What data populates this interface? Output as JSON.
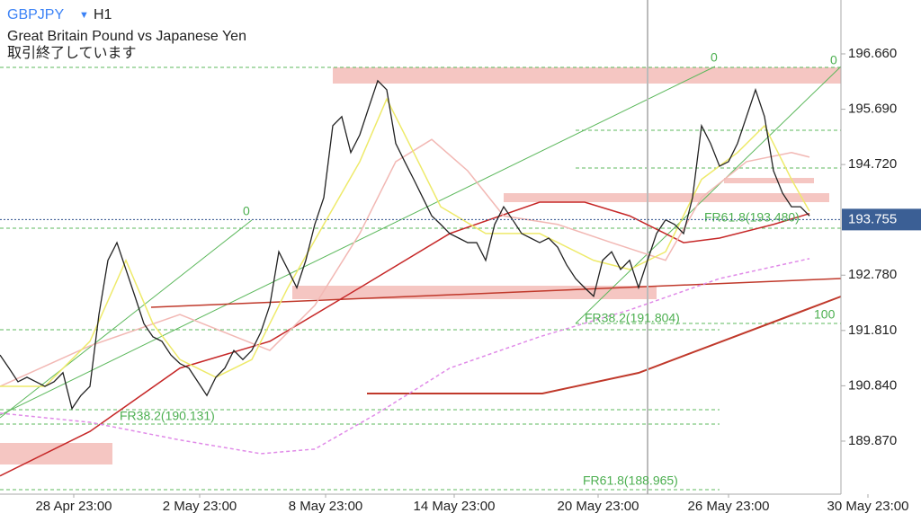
{
  "header": {
    "symbol": "GBPJPY",
    "arrow": "▼",
    "timeframe": "H1",
    "description": "Great Britain Pound vs Japanese Yen",
    "status": "取引終了しています"
  },
  "chart_data": {
    "type": "line",
    "values": [
      191.38,
      191.15,
      190.91,
      190.99,
      190.91,
      190.83,
      190.91,
      191.07,
      190.44,
      190.67,
      190.83,
      192.09,
      193.04,
      193.35,
      192.88,
      192.41,
      191.93,
      191.7,
      191.62,
      191.38,
      191.23,
      191.15,
      190.91,
      190.67,
      190.99,
      191.15,
      191.46,
      191.3,
      191.46,
      191.78,
      192.25,
      193.19,
      192.88,
      192.56,
      193.04,
      193.67,
      194.14,
      195.4,
      195.56,
      194.93,
      195.24,
      195.72,
      196.19,
      196.03,
      195.09,
      194.77,
      194.46,
      194.14,
      193.82,
      193.67,
      193.51,
      193.43,
      193.35,
      193.35,
      193.04,
      193.67,
      193.98,
      193.75,
      193.51,
      193.43,
      193.35,
      193.43,
      193.27,
      192.96,
      192.72,
      192.56,
      192.41,
      193.04,
      193.19,
      192.88,
      193.04,
      192.56,
      193.04,
      193.51,
      193.75,
      193.67,
      193.51,
      194.14,
      195.4,
      195.09,
      194.69,
      194.77,
      195.09,
      195.56,
      196.03,
      195.56,
      194.61,
      194.22,
      193.98,
      193.98,
      193.82
    ],
    "color": "#222222",
    "series": [
      {
        "color": "#c62828",
        "x": [
          0,
          10,
          20,
          30,
          40,
          50,
          60,
          65,
          70,
          76,
          80,
          86,
          90
        ],
        "values": [
          189.26,
          190.04,
          191.15,
          191.62,
          192.56,
          193.51,
          194.06,
          194.06,
          193.82,
          193.35,
          193.43,
          193.67,
          193.86
        ]
      },
      {
        "color": "#f2b8b4",
        "x": [
          0,
          10,
          20,
          30,
          35,
          40,
          44,
          48,
          52,
          56,
          62,
          68,
          74,
          78,
          83,
          88,
          90
        ],
        "values": [
          190.83,
          191.54,
          192.09,
          191.46,
          192.25,
          193.51,
          194.77,
          195.16,
          194.61,
          193.82,
          193.67,
          193.35,
          193.04,
          194.14,
          194.77,
          194.93,
          194.85
        ]
      },
      {
        "color": "#eeea6a",
        "x": [
          0,
          5,
          10,
          14,
          17,
          20,
          24,
          28,
          32,
          36,
          40,
          43,
          46,
          49,
          54,
          60,
          66,
          70,
          74,
          78,
          82,
          85,
          88,
          90
        ],
        "values": [
          190.83,
          190.83,
          191.62,
          193.04,
          191.93,
          191.3,
          190.99,
          191.3,
          192.56,
          193.67,
          194.77,
          195.87,
          194.93,
          193.98,
          193.51,
          193.51,
          193.04,
          192.88,
          193.19,
          194.46,
          194.93,
          195.4,
          194.46,
          193.9
        ]
      },
      {
        "color": "#e08ae8",
        "dashed": true,
        "x": [
          0,
          10,
          20,
          29,
          35,
          42,
          50,
          60,
          70,
          80,
          90
        ],
        "values": [
          190.36,
          190.2,
          189.89,
          189.65,
          189.73,
          190.36,
          191.15,
          191.7,
          192.17,
          192.72,
          193.07
        ]
      }
    ],
    "current_price": {
      "value": 193.755,
      "label": "193.755"
    },
    "xlim": [
      0,
      93.5
    ],
    "ylim": [
      188.94,
      197.605
    ],
    "yticks": [
      {
        "value": 196.66,
        "label": "196.660"
      },
      {
        "value": 195.69,
        "label": "195.690"
      },
      {
        "value": 194.72,
        "label": "194.720"
      },
      {
        "value": 192.78,
        "label": "192.780"
      },
      {
        "value": 191.81,
        "label": "191.810"
      },
      {
        "value": 190.84,
        "label": "190.840"
      },
      {
        "value": 189.87,
        "label": "189.870"
      }
    ],
    "xticks": [
      {
        "value": 8.2,
        "label": "28 Apr 23:00"
      },
      {
        "value": 22.2,
        "label": "2 May 23:00"
      },
      {
        "value": 36.2,
        "label": "8 May 23:00"
      },
      {
        "value": 50.5,
        "label": "14 May 23:00"
      },
      {
        "value": 66.5,
        "label": "20 May 23:00"
      },
      {
        "value": 81,
        "label": "26 May 23:00"
      },
      {
        "value": 96.5,
        "label": "30 May 23:00"
      }
    ]
  },
  "fibs": [
    "0",
    "0",
    "0",
    "100",
    "FR38.2(190.131)",
    "FR38.2(191.804)",
    "FR61.8(193.480)",
    "FR61.8(188.965)"
  ]
}
